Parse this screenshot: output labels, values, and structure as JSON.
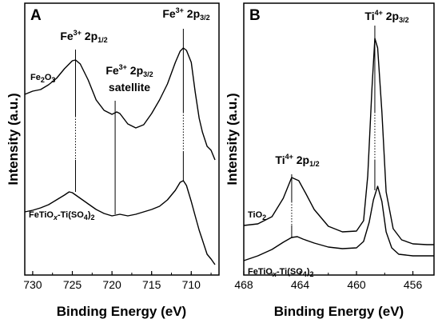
{
  "chart_data": [
    {
      "panel": "A",
      "type": "line",
      "xlabel": "Binding Energy (eV)",
      "ylabel": "Intensity (a.u.)",
      "xlim": [
        731,
        706.5
      ],
      "x_reversed": true,
      "xticks": [
        730,
        725,
        720,
        715,
        710
      ],
      "yticks": [],
      "series": [
        {
          "name": "Fe2O3",
          "color": "#000000",
          "points": [
            [
              731,
              118
            ],
            [
              730,
              114
            ],
            [
              729,
              112
            ],
            [
              728,
              106
            ],
            [
              727,
              98
            ],
            [
              726,
              86
            ],
            [
              725,
              76
            ],
            [
              724.6,
              75
            ],
            [
              724,
              80
            ],
            [
              723,
              100
            ],
            [
              722,
              125
            ],
            [
              721,
              138
            ],
            [
              720,
              143
            ],
            [
              719.4,
              140
            ],
            [
              719,
              142
            ],
            [
              718,
              155
            ],
            [
              717,
              160
            ],
            [
              716,
              156
            ],
            [
              715,
              142
            ],
            [
              714,
              125
            ],
            [
              713,
              105
            ],
            [
              712,
              78
            ],
            [
              711.4,
              64
            ],
            [
              711,
              60
            ],
            [
              710.6,
              63
            ],
            [
              710,
              78
            ],
            [
              709.5,
              115
            ],
            [
              709,
              148
            ],
            [
              708.6,
              165
            ],
            [
              708,
              183
            ],
            [
              707.5,
              188
            ],
            [
              707,
              200
            ]
          ]
        },
        {
          "name": "FeTiOx-Ti(SO4)2",
          "color": "#000000",
          "points": [
            [
              731,
              265
            ],
            [
              730,
              263
            ],
            [
              729,
              260
            ],
            [
              728,
              256
            ],
            [
              727,
              250
            ],
            [
              726,
              244
            ],
            [
              725.4,
              240
            ],
            [
              725,
              241
            ],
            [
              724,
              248
            ],
            [
              723,
              255
            ],
            [
              722,
              262
            ],
            [
              721,
              267
            ],
            [
              720,
              270
            ],
            [
              719,
              268
            ],
            [
              718,
              270
            ],
            [
              717,
              268
            ],
            [
              716,
              265
            ],
            [
              715,
              262
            ],
            [
              714,
              258
            ],
            [
              713,
              250
            ],
            [
              712,
              238
            ],
            [
              711.4,
              228
            ],
            [
              711,
              226
            ],
            [
              710.6,
              232
            ],
            [
              710,
              252
            ],
            [
              709.5,
              270
            ],
            [
              709,
              288
            ],
            [
              708.6,
              300
            ],
            [
              708,
              318
            ],
            [
              707.5,
              324
            ],
            [
              707,
              331
            ]
          ]
        }
      ],
      "annotations": [
        {
          "base": "Fe",
          "sup": "3+",
          "main": " 2p",
          "sub": "1/2",
          "x": 724.6
        },
        {
          "base": "Fe",
          "sup": "3+",
          "main": " 2p",
          "sub": "3/2",
          "x": 711.0
        },
        {
          "base": "Fe",
          "sup": "3+",
          "main": " 2p",
          "sub": "3/2",
          "line2": "satellite",
          "x": 719.6
        }
      ],
      "label_fe2o3": {
        "base": "Fe",
        "sub1": "2",
        "mid": "O",
        "sub2": "3"
      },
      "label_fetiox": {
        "base": "FeTiO",
        "subx": "x",
        "mid": "-Ti(SO",
        "sub4": "4",
        "end": ")",
        "sub2": "2"
      }
    },
    {
      "panel": "B",
      "type": "line",
      "xlabel": "Binding Energy (eV)",
      "ylabel": "Intensity (a.u.)",
      "xlim": [
        468,
        454.5
      ],
      "x_reversed": true,
      "xticks": [
        468,
        464,
        460,
        456
      ],
      "yticks": [],
      "series": [
        {
          "name": "TiO2",
          "color": "#000000",
          "points": [
            [
              468,
              282
            ],
            [
              467,
              280
            ],
            [
              466,
              271
            ],
            [
              465.2,
              248
            ],
            [
              464.6,
              222
            ],
            [
              464.1,
              226
            ],
            [
              463.6,
              242
            ],
            [
              463,
              262
            ],
            [
              462,
              283
            ],
            [
              461,
              290
            ],
            [
              460,
              289
            ],
            [
              459.5,
              276
            ],
            [
              459.2,
              220
            ],
            [
              458.9,
              110
            ],
            [
              458.7,
              48
            ],
            [
              458.5,
              60
            ],
            [
              458.2,
              140
            ],
            [
              457.9,
              240
            ],
            [
              457.4,
              286
            ],
            [
              456.8,
              300
            ],
            [
              456,
              305
            ],
            [
              455,
              306
            ],
            [
              454.5,
              306
            ]
          ]
        },
        {
          "name": "FeTiOx-Ti(SO4)2",
          "color": "#000000",
          "points": [
            [
              468,
              326
            ],
            [
              467,
              320
            ],
            [
              466,
              312
            ],
            [
              465.2,
              303
            ],
            [
              464.6,
              297
            ],
            [
              464.2,
              296
            ],
            [
              463.8,
              299
            ],
            [
              463,
              304
            ],
            [
              462,
              309
            ],
            [
              461,
              311
            ],
            [
              460,
              310
            ],
            [
              459.5,
              302
            ],
            [
              459.1,
              278
            ],
            [
              458.8,
              250
            ],
            [
              458.5,
              233
            ],
            [
              458.2,
              252
            ],
            [
              457.9,
              290
            ],
            [
              457.5,
              310
            ],
            [
              457,
              318
            ],
            [
              456,
              320
            ],
            [
              455,
              320
            ],
            [
              454.5,
              320
            ]
          ]
        }
      ],
      "annotations": [
        {
          "base": "Ti",
          "sup": "4+",
          "main": " 2p",
          "sub": "1/2",
          "x": 464.6
        },
        {
          "base": "Ti",
          "sup": "4+",
          "main": " 2p",
          "sub": "3/2",
          "x": 458.7
        }
      ],
      "label_tio2": {
        "base": "TiO",
        "sub": "2"
      },
      "label_fetiox": {
        "base": "FeTiO",
        "subx": "x",
        "mid": "-Ti(SO",
        "sub4": "4",
        "end": ")",
        "sub2": "2"
      }
    }
  ]
}
